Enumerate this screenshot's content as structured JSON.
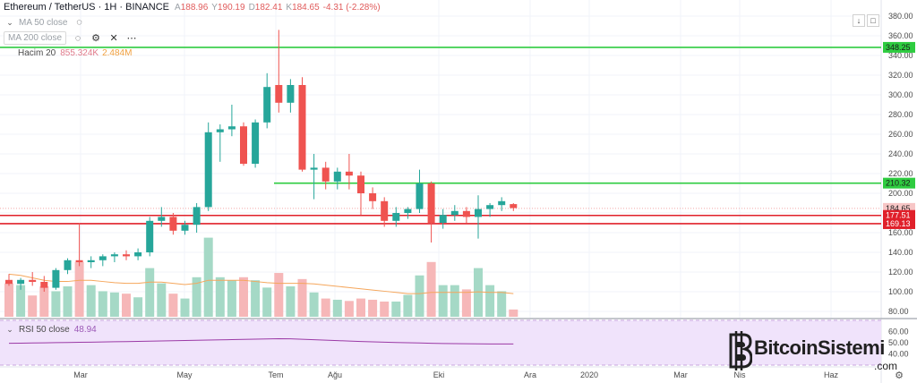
{
  "header": {
    "symbol": "Ethereum / TetherUS · 1H · BINANCE",
    "o_label": "A",
    "o_val": "188.96",
    "h_label": "Y",
    "h_val": "190.19",
    "l_label": "D",
    "l_val": "182.41",
    "c_label": "K",
    "c_val": "184.65",
    "change": "-4.31 (-2.28%)"
  },
  "indicators": {
    "ma50": "MA 50 close",
    "ma200": "MA 200 close",
    "volume_label": "Hacim 20",
    "volume_value": "855.324K",
    "volume_ma": "2.484M",
    "rsi_label": "RSI 50 close",
    "rsi_value": "48.94"
  },
  "watermark": {
    "brand": "BitcoinSistemi",
    "suffix": ".com"
  },
  "colors": {
    "up": "#26a69a",
    "down": "#ef5350",
    "up_vol": "#a5d9c6",
    "down_vol": "#f6b7b8",
    "support_green": "#2ecc40",
    "support_red": "#e0202a",
    "price_tag": "#ef5350",
    "rsi_line": "#9b3aa6",
    "rsi_bg": "#f0e3fb"
  },
  "chart_data": {
    "type": "candlestick",
    "y_ticks": [
      80,
      100,
      120,
      140,
      160,
      180,
      200,
      220,
      240,
      260,
      280,
      300,
      320,
      340,
      360,
      380
    ],
    "ylim": [
      75,
      390
    ],
    "x_ticks": [
      "Mar",
      "May",
      "Tem",
      "Ağu",
      "Eki",
      "Ara",
      "2020",
      "Mar",
      "Nis",
      "Haz"
    ],
    "price_labels": [
      {
        "value": 348.25,
        "label": "348.25",
        "color": "green"
      },
      {
        "value": 210.32,
        "label": "210.32",
        "color": "green"
      },
      {
        "value": 184.65,
        "label": "184.65",
        "color": "light"
      },
      {
        "value": 177.51,
        "label": "177.51",
        "color": "red"
      },
      {
        "value": 169.13,
        "label": "169.13",
        "color": "red"
      }
    ],
    "horizontal_lines": [
      {
        "value": 348.25,
        "color": "green",
        "from": "start"
      },
      {
        "value": 210.32,
        "color": "green",
        "from": "jul"
      },
      {
        "value": 177.51,
        "color": "red",
        "from": "start"
      },
      {
        "value": 169.13,
        "color": "red",
        "from": "start"
      }
    ],
    "candles": [
      {
        "o": 112,
        "h": 118,
        "l": 106,
        "c": 108
      },
      {
        "o": 108,
        "h": 114,
        "l": 102,
        "c": 112
      },
      {
        "o": 112,
        "h": 120,
        "l": 106,
        "c": 110
      },
      {
        "o": 110,
        "h": 116,
        "l": 100,
        "c": 104
      },
      {
        "o": 104,
        "h": 124,
        "l": 102,
        "c": 122
      },
      {
        "o": 122,
        "h": 134,
        "l": 118,
        "c": 132
      },
      {
        "o": 132,
        "h": 170,
        "l": 126,
        "c": 130
      },
      {
        "o": 130,
        "h": 136,
        "l": 124,
        "c": 132
      },
      {
        "o": 132,
        "h": 138,
        "l": 126,
        "c": 136
      },
      {
        "o": 136,
        "h": 140,
        "l": 130,
        "c": 138
      },
      {
        "o": 138,
        "h": 142,
        "l": 132,
        "c": 136
      },
      {
        "o": 136,
        "h": 144,
        "l": 132,
        "c": 140
      },
      {
        "o": 140,
        "h": 176,
        "l": 136,
        "c": 172
      },
      {
        "o": 172,
        "h": 186,
        "l": 166,
        "c": 176
      },
      {
        "o": 176,
        "h": 180,
        "l": 158,
        "c": 162
      },
      {
        "o": 162,
        "h": 172,
        "l": 158,
        "c": 168
      },
      {
        "o": 168,
        "h": 190,
        "l": 160,
        "c": 186
      },
      {
        "o": 186,
        "h": 272,
        "l": 182,
        "c": 262
      },
      {
        "o": 262,
        "h": 270,
        "l": 232,
        "c": 265
      },
      {
        "o": 265,
        "h": 290,
        "l": 258,
        "c": 268
      },
      {
        "o": 268,
        "h": 272,
        "l": 228,
        "c": 230
      },
      {
        "o": 230,
        "h": 275,
        "l": 226,
        "c": 272
      },
      {
        "o": 272,
        "h": 322,
        "l": 266,
        "c": 308
      },
      {
        "o": 310,
        "h": 366,
        "l": 282,
        "c": 292
      },
      {
        "o": 292,
        "h": 316,
        "l": 282,
        "c": 310
      },
      {
        "o": 310,
        "h": 318,
        "l": 222,
        "c": 224
      },
      {
        "o": 224,
        "h": 240,
        "l": 194,
        "c": 226
      },
      {
        "o": 226,
        "h": 232,
        "l": 204,
        "c": 212
      },
      {
        "o": 212,
        "h": 226,
        "l": 204,
        "c": 222
      },
      {
        "o": 222,
        "h": 240,
        "l": 204,
        "c": 218
      },
      {
        "o": 218,
        "h": 222,
        "l": 178,
        "c": 200
      },
      {
        "o": 200,
        "h": 206,
        "l": 184,
        "c": 192
      },
      {
        "o": 192,
        "h": 196,
        "l": 166,
        "c": 172
      },
      {
        "o": 172,
        "h": 186,
        "l": 166,
        "c": 180
      },
      {
        "o": 180,
        "h": 186,
        "l": 174,
        "c": 184
      },
      {
        "o": 184,
        "h": 224,
        "l": 180,
        "c": 210
      },
      {
        "o": 210,
        "h": 212,
        "l": 150,
        "c": 170
      },
      {
        "o": 170,
        "h": 184,
        "l": 164,
        "c": 178
      },
      {
        "o": 178,
        "h": 188,
        "l": 172,
        "c": 182
      },
      {
        "o": 182,
        "h": 186,
        "l": 170,
        "c": 176
      },
      {
        "o": 176,
        "h": 198,
        "l": 154,
        "c": 184
      },
      {
        "o": 184,
        "h": 190,
        "l": 176,
        "c": 188
      },
      {
        "o": 188,
        "h": 196,
        "l": 182,
        "c": 192
      },
      {
        "o": 189,
        "h": 190,
        "l": 182,
        "c": 185
      }
    ],
    "volume": {
      "values": [
        0.55,
        0.52,
        0.35,
        0.5,
        0.42,
        0.5,
        0.9,
        0.52,
        0.42,
        0.4,
        0.38,
        0.32,
        0.8,
        0.55,
        0.38,
        0.3,
        0.65,
        1.3,
        0.65,
        0.6,
        0.65,
        0.6,
        0.48,
        0.72,
        0.5,
        0.62,
        0.4,
        0.3,
        0.28,
        0.26,
        0.3,
        0.28,
        0.25,
        0.25,
        0.36,
        0.68,
        0.9,
        0.52,
        0.52,
        0.45,
        0.8,
        0.52,
        0.42,
        0.12
      ],
      "ma": [
        0.7,
        0.68,
        0.64,
        0.6,
        0.58,
        0.58,
        0.6,
        0.6,
        0.58,
        0.56,
        0.55,
        0.55,
        0.57,
        0.57,
        0.55,
        0.53,
        0.55,
        0.6,
        0.6,
        0.6,
        0.6,
        0.58,
        0.56,
        0.55,
        0.55,
        0.55,
        0.54,
        0.52,
        0.5,
        0.48,
        0.46,
        0.44,
        0.42,
        0.4,
        0.38,
        0.38,
        0.4,
        0.4,
        0.4,
        0.4,
        0.41,
        0.4,
        0.4,
        0.38
      ]
    },
    "rsi": {
      "y_ticks": [
        40,
        50,
        60
      ],
      "ylim": [
        30,
        70
      ],
      "band": [
        30,
        70
      ],
      "values": [
        49.5,
        49.6,
        49.8,
        49.9,
        50.1,
        50.2,
        50.4,
        50.5,
        50.7,
        50.9,
        51.0,
        51.2,
        51.4,
        51.6,
        51.8,
        52.0,
        52.2,
        52.4,
        52.6,
        52.8,
        53.0,
        53.2,
        53.4,
        53.6,
        53.5,
        53.1,
        52.7,
        52.3,
        51.9,
        51.5,
        51.1,
        50.8,
        50.5,
        50.2,
        50.0,
        49.8,
        49.5,
        49.3,
        49.2,
        49.1,
        49.0,
        48.95,
        48.94,
        48.94
      ]
    }
  }
}
